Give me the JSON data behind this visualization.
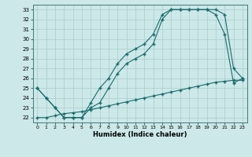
{
  "xlabel": "Humidex (Indice chaleur)",
  "bg_color": "#cce8e8",
  "grid_color": "#aacccc",
  "line_color": "#1a6b6b",
  "xlim": [
    -0.5,
    23.5
  ],
  "ylim": [
    21.5,
    33.5
  ],
  "xticks": [
    0,
    1,
    2,
    3,
    4,
    5,
    6,
    7,
    8,
    9,
    10,
    11,
    12,
    13,
    14,
    15,
    16,
    17,
    18,
    19,
    20,
    21,
    22,
    23
  ],
  "yticks": [
    22,
    23,
    24,
    25,
    26,
    27,
    28,
    29,
    30,
    31,
    32,
    33
  ],
  "line1_x": [
    0,
    1,
    2,
    3,
    4,
    5,
    6,
    7,
    8,
    9,
    10,
    11,
    12,
    13,
    14,
    15,
    16,
    17,
    18,
    19,
    20,
    21,
    22,
    23
  ],
  "line1_y": [
    25,
    24,
    23,
    22,
    22,
    22,
    23,
    23.5,
    25,
    26.5,
    27.5,
    28.0,
    28.5,
    29.5,
    32.0,
    33.0,
    33.0,
    33.0,
    33.0,
    33.0,
    33.0,
    32.5,
    27.0,
    26.0
  ],
  "line2_x": [
    0,
    1,
    2,
    3,
    4,
    5,
    6,
    7,
    8,
    9,
    10,
    11,
    12,
    13,
    14,
    15,
    16,
    17,
    18,
    19,
    20,
    21,
    22,
    23
  ],
  "line2_y": [
    25,
    24,
    23,
    22,
    22,
    22,
    23.5,
    25,
    26,
    27.5,
    28.5,
    29.0,
    29.5,
    30.5,
    32.5,
    33.0,
    33.0,
    33.0,
    33.0,
    33.0,
    32.5,
    30.5,
    25.5,
    26.0
  ],
  "line3_x": [
    0,
    1,
    2,
    3,
    4,
    5,
    6,
    7,
    8,
    9,
    10,
    11,
    12,
    13,
    14,
    15,
    16,
    17,
    18,
    19,
    20,
    21,
    22,
    23
  ],
  "line3_y": [
    22,
    22,
    22.2,
    22.4,
    22.5,
    22.6,
    22.8,
    23.0,
    23.2,
    23.4,
    23.6,
    23.8,
    24.0,
    24.2,
    24.4,
    24.6,
    24.8,
    25.0,
    25.2,
    25.4,
    25.6,
    25.7,
    25.8,
    25.8
  ]
}
